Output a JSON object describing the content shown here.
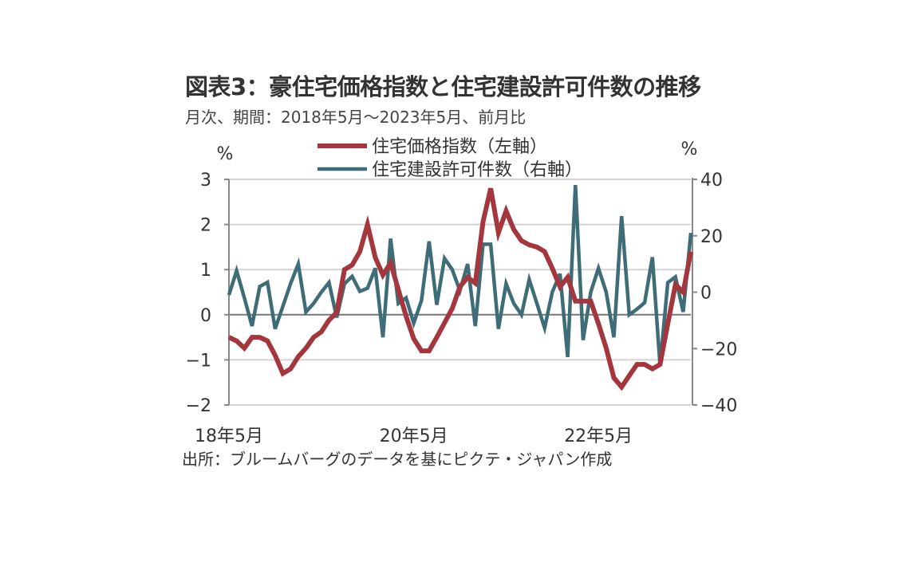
{
  "title": "図表3：豪住宅価格指数と住宅建設許可件数の推移",
  "subtitle": "月次、期間：2018年5月～2023年5月、前月比",
  "source": "出所：ブルームバーグのデータを基にピクテ・ジャパン作成",
  "chart_data": {
    "type": "line",
    "title": "図表3：豪住宅価格指数と住宅建設許可件数の推移",
    "left_unit": "%",
    "right_unit": "%",
    "x_tick_labels": [
      "18年5月",
      "20年5月",
      "22年5月"
    ],
    "x_tick_months": [
      0,
      24,
      48
    ],
    "n_months": 61,
    "left_axis": {
      "min": -2,
      "max": 3,
      "ticks": [
        "3",
        "2",
        "1",
        "0",
        "−1",
        "−2"
      ],
      "tick_values": [
        3,
        2,
        1,
        0,
        -1,
        -2
      ]
    },
    "right_axis": {
      "min": -40,
      "max": 40,
      "ticks": [
        "40",
        "20",
        "0",
        "−20",
        "−40"
      ],
      "tick_values": [
        40,
        20,
        0,
        -20,
        -40
      ]
    },
    "grid": true,
    "legend_position": "top",
    "series": [
      {
        "name": "住宅価格指数（左軸）",
        "axis": "left",
        "color": "#a4373e",
        "values": [
          -0.5,
          -0.58,
          -0.74,
          -0.5,
          -0.5,
          -0.58,
          -0.9,
          -1.3,
          -1.2,
          -0.93,
          -0.74,
          -0.5,
          -0.38,
          -0.12,
          0.05,
          1.0,
          1.1,
          1.4,
          2.0,
          1.27,
          0.88,
          1.15,
          0.56,
          -0.03,
          -0.53,
          -0.8,
          -0.8,
          -0.5,
          -0.18,
          0.14,
          0.62,
          0.83,
          0.7,
          2.06,
          2.8,
          1.82,
          2.3,
          1.89,
          1.64,
          1.55,
          1.5,
          1.4,
          1.03,
          0.62,
          0.83,
          0.3,
          0.3,
          0.3,
          -0.2,
          -0.74,
          -1.4,
          -1.6,
          -1.35,
          -1.1,
          -1.1,
          -1.2,
          -1.1,
          -0.2,
          0.67,
          0.5,
          1.4
        ]
      },
      {
        "name": "住宅建設許可件数（右軸）",
        "axis": "right",
        "color": "#3e6d77",
        "values": [
          -1,
          7.6,
          -2,
          -12,
          2,
          3.5,
          -13,
          -5,
          3,
          10,
          -7,
          -4,
          0,
          3.4,
          -9,
          3,
          5.6,
          0.3,
          1.4,
          8.5,
          -16,
          19,
          -4,
          -2,
          -11,
          -3,
          18,
          -4.5,
          12,
          8,
          0.5,
          10,
          -12,
          17,
          17,
          -13,
          3,
          -4,
          -8,
          4.5,
          -4,
          -12.7,
          0,
          6.5,
          -23,
          38,
          -17,
          0,
          8.5,
          0,
          -16,
          27,
          -8,
          -6,
          -3.7,
          12.4,
          -26,
          3.4,
          5.4,
          -7,
          21
        ]
      }
    ]
  }
}
